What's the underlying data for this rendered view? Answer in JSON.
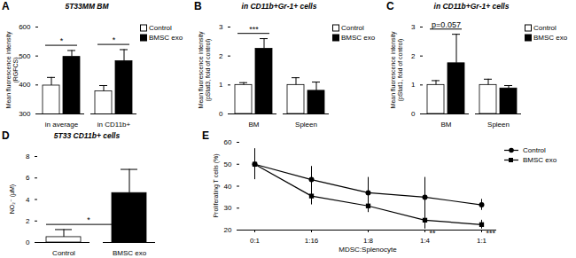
{
  "chart_data": [
    {
      "panel": "A",
      "type": "bar",
      "title": "5T33MM BM",
      "y_label": "Mean fluorescence intensity (RGFCS)",
      "categories": [
        "in average",
        "in CD11b+"
      ],
      "series": [
        {
          "name": "Control",
          "color": "#ffffff",
          "values": [
            398,
            378
          ],
          "errors": [
            28,
            20
          ]
        },
        {
          "name": "BMSC exo",
          "color": "#000000",
          "values": [
            497,
            482
          ],
          "errors": [
            22,
            40
          ]
        }
      ],
      "ylim": [
        300,
        600
      ],
      "yticks": [
        300,
        400,
        500,
        600
      ],
      "legend": "top-right",
      "annotations": [
        {
          "category": "in average",
          "text": "*"
        },
        {
          "category": "in CD11b+",
          "text": "*"
        }
      ]
    },
    {
      "panel": "B",
      "type": "bar",
      "title": "in CD11b+Gr-1+ cells",
      "y_label": "Mean fluorescence intensity (pStat3, fold of control)",
      "categories": [
        "BM",
        "Spleen"
      ],
      "series": [
        {
          "name": "Control",
          "color": "#ffffff",
          "values": [
            1.0,
            1.0
          ],
          "errors": [
            0.08,
            0.25
          ]
        },
        {
          "name": "BMSC exo",
          "color": "#000000",
          "values": [
            2.25,
            0.8
          ],
          "errors": [
            0.35,
            0.3
          ]
        }
      ],
      "ylim": [
        0,
        3
      ],
      "yticks": [
        0,
        1,
        2,
        3
      ],
      "legend": "top-right",
      "annotations": [
        {
          "category": "BM",
          "text": "***"
        }
      ]
    },
    {
      "panel": "C",
      "type": "bar",
      "title": "in CD11b+Gr-1+ cells",
      "y_label": "Mean fluorescence intensity (pStat1, fold of control)",
      "categories": [
        "BM",
        "Spleen"
      ],
      "series": [
        {
          "name": "Control",
          "color": "#ffffff",
          "values": [
            1.0,
            1.0
          ],
          "errors": [
            0.15,
            0.2
          ]
        },
        {
          "name": "BMSC exo",
          "color": "#000000",
          "values": [
            1.75,
            0.88
          ],
          "errors": [
            1.0,
            0.1
          ]
        }
      ],
      "ylim": [
        0,
        3
      ],
      "yticks": [
        0,
        1,
        2,
        3
      ],
      "legend": "top-right",
      "annotations": [
        {
          "category": "BM",
          "text": "p=0.057"
        }
      ]
    },
    {
      "panel": "D",
      "type": "bar",
      "title": "5T33 CD11b+ cells",
      "y_label": "NO₂⁻ (μM)",
      "categories": [
        "Control",
        "BMSC exo"
      ],
      "series": [
        {
          "name": "Control",
          "color": "#ffffff",
          "values": [
            0.5,
            null
          ],
          "errors": [
            0.7,
            null
          ]
        },
        {
          "name": "BMSC exo",
          "color": "#000000",
          "values": [
            null,
            4.6
          ],
          "errors": [
            null,
            2.2
          ]
        }
      ],
      "ylim": [
        0,
        8
      ],
      "yticks": [
        0,
        2,
        4,
        6,
        8
      ],
      "annotations": [
        {
          "category": "Control",
          "text": "*"
        }
      ]
    },
    {
      "panel": "E",
      "type": "line",
      "x_label": "MDSC:Splenocyte",
      "y_label": "Proliferating T cells (%)",
      "categories": [
        "0:1",
        "1:16",
        "1:8",
        "1:4",
        "1:1"
      ],
      "series": [
        {
          "name": "Control",
          "color": "#000000",
          "marker": "circle",
          "values": [
            50,
            43,
            37,
            35,
            31.5
          ],
          "errors": [
            7,
            6,
            7,
            9,
            2.5
          ]
        },
        {
          "name": "BMSC exo",
          "color": "#000000",
          "marker": "square",
          "values": [
            50,
            35.5,
            31,
            24.5,
            22.5
          ],
          "errors": [
            7,
            4,
            3,
            4,
            2
          ]
        }
      ],
      "ylim": [
        20,
        60
      ],
      "yticks": [
        20,
        30,
        40,
        50,
        60
      ],
      "legend": "top-right",
      "annotations": [
        {
          "category": "1:4",
          "series": "BMSC exo",
          "text": "**"
        },
        {
          "category": "1:1",
          "series": "BMSC exo",
          "text": "***"
        }
      ]
    }
  ]
}
